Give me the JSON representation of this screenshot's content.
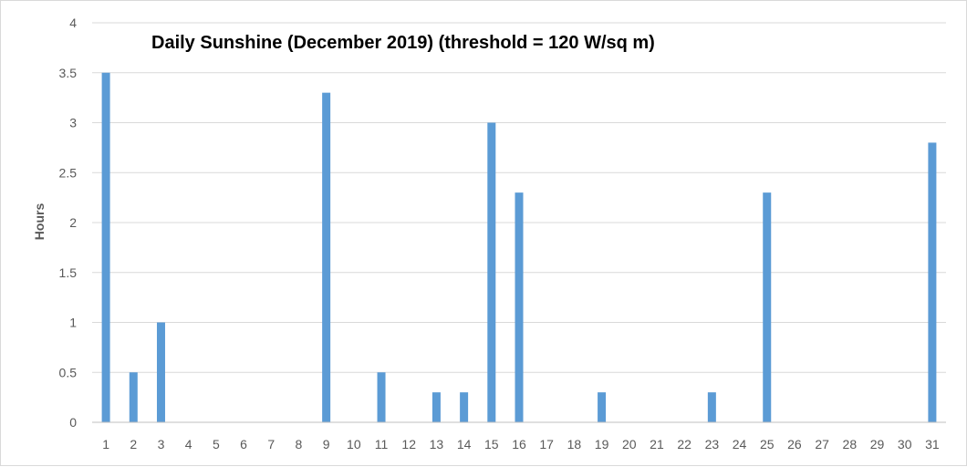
{
  "chart_data": {
    "type": "bar",
    "title": "Daily Sunshine (December 2019) (threshold = 120 W/sq m)",
    "xlabel": "",
    "ylabel": "Hours",
    "ylim": [
      0,
      4
    ],
    "yticks": [
      "0",
      "0.5",
      "1",
      "1.5",
      "2",
      "2.5",
      "3",
      "3.5",
      "4"
    ],
    "categories": [
      "1",
      "2",
      "3",
      "4",
      "5",
      "6",
      "7",
      "8",
      "9",
      "10",
      "11",
      "12",
      "13",
      "14",
      "15",
      "16",
      "17",
      "18",
      "19",
      "20",
      "21",
      "22",
      "23",
      "24",
      "25",
      "26",
      "27",
      "28",
      "29",
      "30",
      "31"
    ],
    "values": [
      3.5,
      0.5,
      1.0,
      0,
      0,
      0,
      0,
      0,
      3.3,
      0,
      0.5,
      0,
      0.3,
      0.3,
      3.0,
      2.3,
      0,
      0,
      0.3,
      0,
      0,
      0,
      0.3,
      0,
      2.3,
      0,
      0,
      0,
      0,
      0,
      2.8
    ],
    "grid": true,
    "legend": "none",
    "bar_color": "#5b9bd5",
    "grid_color": "#d9d9d9",
    "axis_color": "#bfbfbf"
  }
}
